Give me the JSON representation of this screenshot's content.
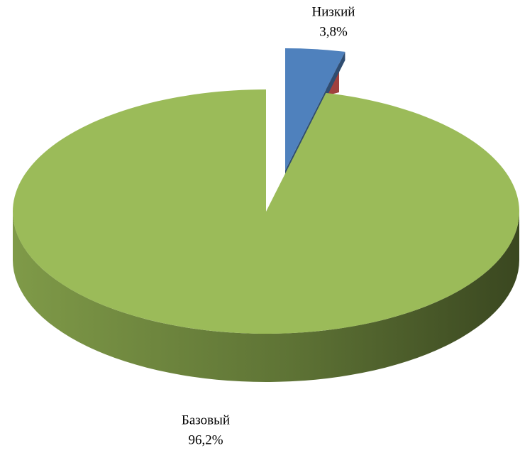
{
  "chart_data": {
    "type": "pie",
    "categories": [
      "Низкий",
      "Базовый"
    ],
    "values": [
      3.8,
      96.2
    ],
    "value_labels": [
      "3,8%",
      "96,2%"
    ],
    "colors": [
      "#4f81bd",
      "#9bbb59"
    ]
  }
}
